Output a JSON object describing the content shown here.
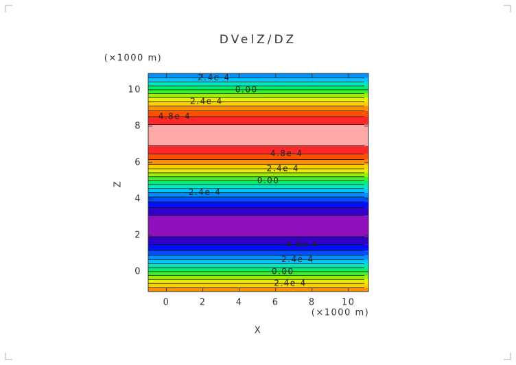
{
  "chart_data": {
    "type": "contour",
    "title": "DVelZ/DZ",
    "x_label": "X",
    "y_label": "Z",
    "x_unit": "(×1000 m)",
    "y_unit": "(×1000 m)",
    "xlim": [
      -1,
      11.1
    ],
    "ylim": [
      -1.1,
      10.9
    ],
    "xticks": [
      0,
      2,
      4,
      6,
      8,
      10
    ],
    "yticks": [
      0,
      2,
      4,
      6,
      8,
      10
    ],
    "edges": [
      -0.895,
      -0.655,
      -0.43,
      -0.213,
      0,
      0.213,
      0.43,
      0.655,
      0.895,
      1.161,
      1.476,
      1.916,
      3.084,
      3.524,
      3.839,
      4.105,
      4.345,
      4.57,
      4.787,
      5,
      5.213,
      5.43,
      5.655,
      5.895,
      6.161,
      6.476,
      6.916,
      8.084,
      8.524,
      8.839,
      9.105,
      9.345,
      9.57,
      9.787,
      10,
      10.213,
      10.43,
      10.655
    ],
    "band_colors": [
      "#ff9000",
      "#ffd000",
      "#e8f000",
      "#a0f000",
      "#40f030",
      "#00f070",
      "#00e8c0",
      "#00c8ff",
      "#0090ff",
      "#0050ff",
      "#0010ff",
      "#3000c8",
      "#9010c0",
      "#3000c8",
      "#0010ff",
      "#0050ff",
      "#0090ff",
      "#00c8ff",
      "#00e8c0",
      "#00f070",
      "#40f030",
      "#a0f000",
      "#e8f000",
      "#ffd000",
      "#ff9000",
      "#ff5000",
      "#ff2828",
      "#ffa8a8",
      "#ff2828",
      "#ff5000",
      "#ff9000",
      "#ffd000",
      "#e8f000",
      "#a0f000",
      "#40f030",
      "#00f070",
      "#00e8c0",
      "#00c8ff",
      "#0090ff"
    ],
    "contour_labels": [
      {
        "label": "-2.4e-4",
        "x": 2.5,
        "y": 10.655
      },
      {
        "label": "0.00",
        "x": 4.4,
        "y": 10
      },
      {
        "label": "2.4e-4",
        "x": 2.2,
        "y": 9.345
      },
      {
        "label": "4.8e-4",
        "x": 0.45,
        "y": 8.524
      },
      {
        "label": "4.8e-4",
        "x": 6.6,
        "y": 6.476
      },
      {
        "label": "2.4e-4",
        "x": 6.4,
        "y": 5.655
      },
      {
        "label": "0.00",
        "x": 5.6,
        "y": 5
      },
      {
        "label": "-2.4e-4",
        "x": 2.0,
        "y": 4.345
      },
      {
        "label": "-4.8e-4",
        "x": 7.35,
        "y": 1.476
      },
      {
        "label": "-2.4e-4",
        "x": 7.1,
        "y": 0.655
      },
      {
        "label": "0.00",
        "x": 6.4,
        "y": 0
      },
      {
        "label": "2.4e-4",
        "x": 6.8,
        "y": -0.655
      }
    ]
  }
}
